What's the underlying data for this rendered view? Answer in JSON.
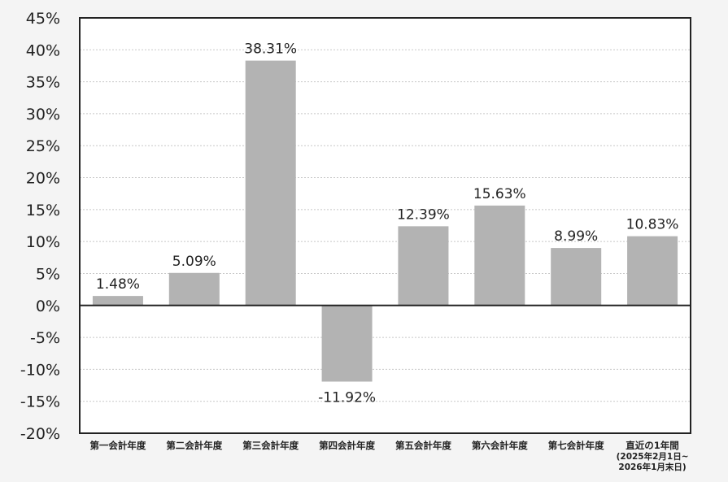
{
  "chart_data": {
    "type": "bar",
    "title": "",
    "xlabel": "",
    "ylabel": "",
    "ylim": [
      -20,
      45
    ],
    "y_ticks": [
      "45%",
      "40%",
      "35%",
      "30%",
      "25%",
      "20%",
      "15%",
      "10%",
      "5%",
      "0%",
      "-5%",
      "-10%",
      "-15%",
      "-20%"
    ],
    "y_tick_values": [
      45,
      40,
      35,
      30,
      25,
      20,
      15,
      10,
      5,
      0,
      -5,
      -10,
      -15,
      -20
    ],
    "categories": [
      [
        "第一会計年度"
      ],
      [
        "第二会計年度"
      ],
      [
        "第三会計年度"
      ],
      [
        "第四会計年度"
      ],
      [
        "第五会計年度"
      ],
      [
        "第六会計年度"
      ],
      [
        "第七会計年度"
      ],
      [
        "直近の1年間",
        "(2025年2月1日~",
        "2026年1月末日)"
      ]
    ],
    "values": [
      1.48,
      5.09,
      38.31,
      -11.92,
      12.39,
      15.63,
      8.99,
      10.83
    ],
    "value_labels": [
      "1.48%",
      "5.09%",
      "38.31%",
      "-11.92%",
      "12.39%",
      "15.63%",
      "8.99%",
      "10.83%"
    ],
    "grid": true,
    "colors": {
      "bar": "#b3b3b3",
      "plot_bg": "#ffffff",
      "grid": "#c8c8c8",
      "axis": "#222222"
    }
  }
}
